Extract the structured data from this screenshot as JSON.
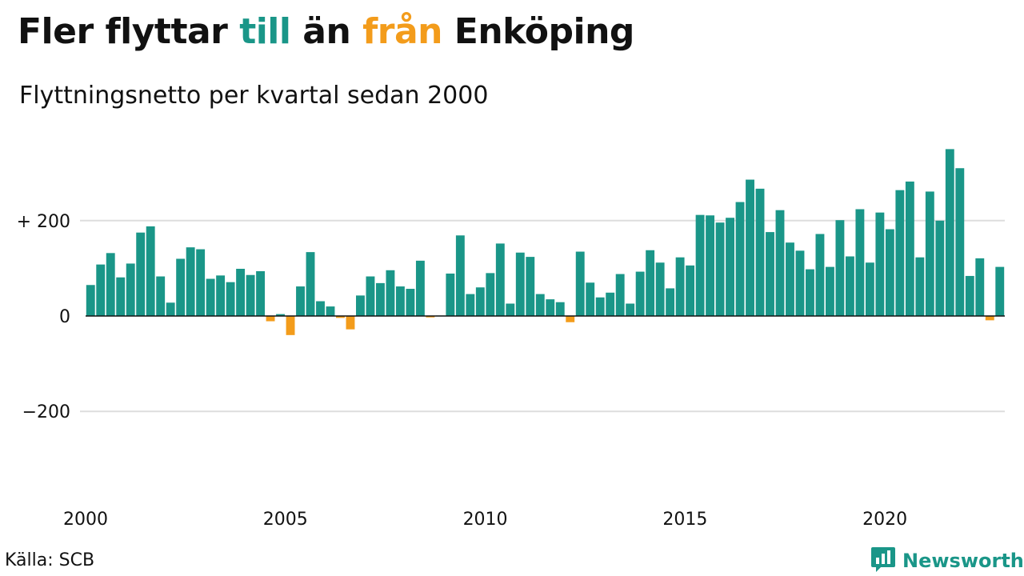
{
  "title": {
    "part1": "Fler flyttar ",
    "part2": "till",
    "part3": " än ",
    "part4": "från",
    "part5": " Enköping"
  },
  "subtitle": "Flyttningsnetto per kvartal sedan 2000",
  "source": "Källa: SCB",
  "brand": {
    "name": "Newsworthy",
    "icon": "bar-chart-speech-icon"
  },
  "colors": {
    "positive": "#1a9688",
    "negative": "#f39c1b",
    "grid": "#dddddd",
    "zero": "#111111",
    "text": "#111111"
  },
  "chart_data": {
    "type": "bar",
    "x_start": "2000 Q1",
    "frequency": "quarterly",
    "ylim": [
      -380,
      360
    ],
    "yticks": [
      -200,
      0,
      200
    ],
    "ytick_labels": [
      "−200",
      "0",
      "+ 200"
    ],
    "xticks": [
      2000,
      2005,
      2010,
      2015,
      2020
    ],
    "xtick_labels": [
      "2000",
      "2005",
      "2010",
      "2015",
      "2020"
    ],
    "grid": true,
    "values": [
      65,
      108,
      132,
      81,
      110,
      175,
      188,
      83,
      28,
      120,
      144,
      140,
      78,
      85,
      71,
      99,
      86,
      94,
      -11,
      4,
      -40,
      62,
      134,
      31,
      20,
      -4,
      -28,
      43,
      83,
      69,
      96,
      62,
      57,
      116,
      -3,
      1,
      89,
      169,
      46,
      60,
      90,
      152,
      26,
      133,
      124,
      46,
      35,
      29,
      -13,
      135,
      70,
      39,
      49,
      88,
      26,
      93,
      138,
      112,
      58,
      123,
      106,
      212,
      211,
      196,
      206,
      239,
      286,
      267,
      176,
      222,
      154,
      137,
      98,
      172,
      103,
      201,
      125,
      224,
      112,
      217,
      182,
      264,
      282,
      123,
      261,
      200,
      350,
      310,
      84,
      121,
      -9,
      103
    ]
  }
}
